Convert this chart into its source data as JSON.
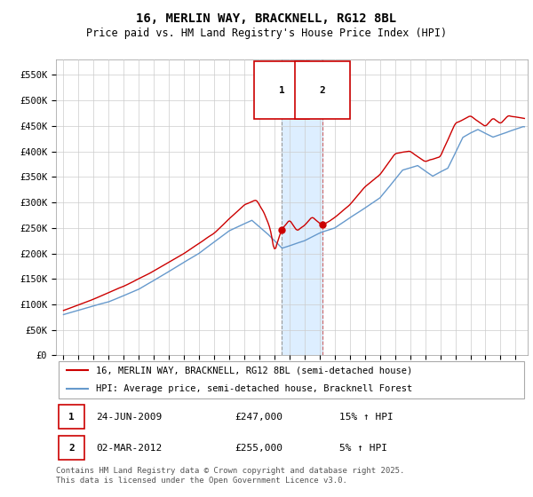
{
  "title": "16, MERLIN WAY, BRACKNELL, RG12 8BL",
  "subtitle": "Price paid vs. HM Land Registry's House Price Index (HPI)",
  "ylim": [
    0,
    580000
  ],
  "yticks": [
    0,
    50000,
    100000,
    150000,
    200000,
    250000,
    300000,
    350000,
    400000,
    450000,
    500000,
    550000
  ],
  "ytick_labels": [
    "£0",
    "£50K",
    "£100K",
    "£150K",
    "£200K",
    "£250K",
    "£300K",
    "£350K",
    "£400K",
    "£450K",
    "£500K",
    "£550K"
  ],
  "sale1_year": 2009.48,
  "sale1_price": 247000,
  "sale2_year": 2012.17,
  "sale2_price": 255000,
  "line_color_red": "#cc0000",
  "line_color_blue": "#6699cc",
  "shaded_color": "#ddeeff",
  "vline_color1": "#aaaaaa",
  "vline_color2": "#cc6666",
  "grid_color": "#cccccc",
  "background_color": "#ffffff",
  "legend_label_red": "16, MERLIN WAY, BRACKNELL, RG12 8BL (semi-detached house)",
  "legend_label_blue": "HPI: Average price, semi-detached house, Bracknell Forest",
  "footer": "Contains HM Land Registry data © Crown copyright and database right 2025.\nThis data is licensed under the Open Government Licence v3.0.",
  "title_fontsize": 10,
  "subtitle_fontsize": 8.5,
  "tick_fontsize": 7.5,
  "legend_fontsize": 7.5,
  "footer_fontsize": 6.5,
  "xlim_left": 1994.5,
  "xlim_right": 2025.8
}
